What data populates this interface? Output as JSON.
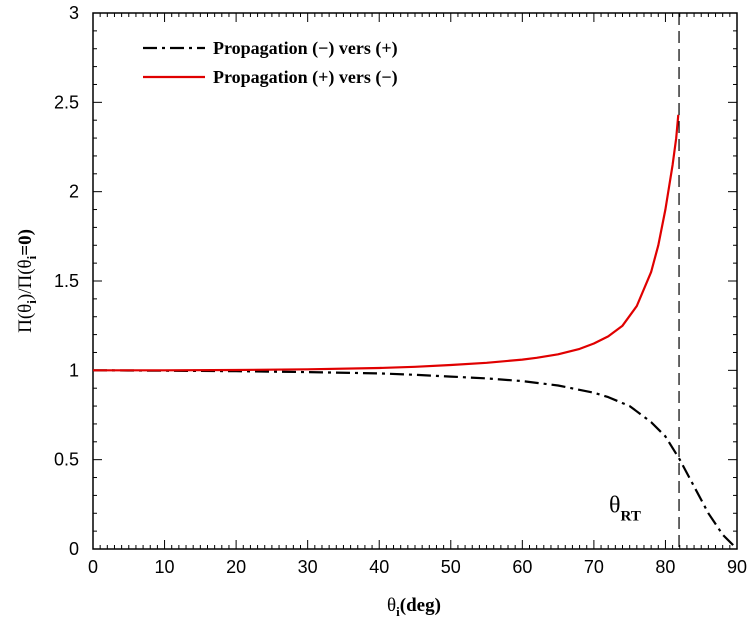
{
  "chart_data": {
    "type": "line",
    "title": "",
    "xlabel": {
      "main": "θ",
      "sub": "i",
      "rest": "(deg)"
    },
    "ylabel": {
      "parts": [
        "Π(θ",
        "i",
        ")/Π(θ",
        "i",
        "=0)"
      ]
    },
    "xlim": [
      0,
      90
    ],
    "ylim": [
      0,
      3
    ],
    "xticks": [
      0,
      10,
      20,
      30,
      40,
      50,
      60,
      70,
      80,
      90
    ],
    "yticks": [
      0,
      0.5,
      1,
      1.5,
      2,
      2.5,
      3
    ],
    "ytick_labels": [
      "0",
      "0.5",
      "1",
      "1.5",
      "2",
      "2.5",
      "3"
    ],
    "grid": false,
    "legend_position": "top-left",
    "series": [
      {
        "name": "Propagation (−) vers (+)",
        "color": "#000000",
        "style": "dash-dot",
        "x": [
          0,
          10,
          20,
          30,
          40,
          45,
          50,
          55,
          60,
          65,
          70,
          72,
          75,
          78,
          80,
          82,
          84,
          86,
          88,
          90
        ],
        "y": [
          1.0,
          0.998,
          0.995,
          0.99,
          0.983,
          0.975,
          0.965,
          0.955,
          0.94,
          0.915,
          0.875,
          0.85,
          0.8,
          0.71,
          0.63,
          0.5,
          0.35,
          0.2,
          0.08,
          0.0
        ]
      },
      {
        "name": "Propagation (+) vers (−)",
        "color": "#e00000",
        "style": "solid",
        "x": [
          0,
          10,
          20,
          30,
          40,
          45,
          50,
          55,
          60,
          62,
          65,
          68,
          70,
          72,
          74,
          76,
          78,
          79,
          80,
          81,
          81.5,
          81.8
        ],
        "y": [
          1.0,
          1.0,
          1.002,
          1.006,
          1.013,
          1.02,
          1.03,
          1.042,
          1.06,
          1.07,
          1.09,
          1.12,
          1.15,
          1.19,
          1.25,
          1.36,
          1.55,
          1.7,
          1.9,
          2.15,
          2.3,
          2.43
        ]
      }
    ],
    "reference_line": {
      "x": 81.9,
      "style": "dashed",
      "color": "#000000"
    },
    "annotation": {
      "main": "θ",
      "sub": "RT",
      "x": 81.9,
      "y": 0.25
    }
  }
}
